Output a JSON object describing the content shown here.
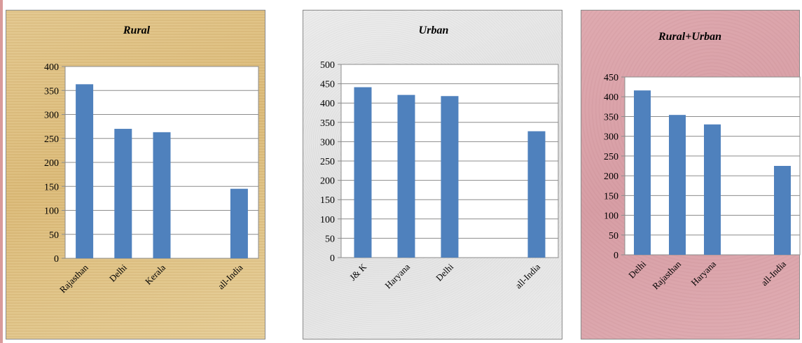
{
  "colors": {
    "bar": "#4f81bd",
    "grid": "#8c8c8c",
    "plot_background": "#ffffff"
  },
  "chart_data": [
    {
      "type": "bar",
      "title": "Rural",
      "categories": [
        "Rajasthan",
        "Delhi",
        "Kerala",
        "",
        "all-India"
      ],
      "values": [
        363,
        270,
        263,
        null,
        145
      ],
      "ylim": [
        0,
        400
      ],
      "yticks": [
        0,
        50,
        100,
        150,
        200,
        250,
        300,
        350,
        400
      ],
      "grid": true,
      "legend": "none"
    },
    {
      "type": "bar",
      "title": "Urban",
      "categories": [
        "J& K",
        "Haryana",
        "Delhi",
        "",
        "all-India"
      ],
      "values": [
        441,
        421,
        418,
        null,
        327
      ],
      "ylim": [
        0,
        500
      ],
      "yticks": [
        0,
        50,
        100,
        150,
        200,
        250,
        300,
        350,
        400,
        450,
        500
      ],
      "grid": true,
      "legend": "none"
    },
    {
      "type": "bar",
      "title": "Rural+Urban",
      "categories": [
        "Delhi",
        "Rajasthan",
        "Haryana",
        "",
        "all-India"
      ],
      "values": [
        416,
        354,
        330,
        null,
        225
      ],
      "ylim": [
        0,
        450
      ],
      "yticks": [
        0,
        50,
        100,
        150,
        200,
        250,
        300,
        350,
        400,
        450
      ],
      "grid": true,
      "legend": "none"
    }
  ]
}
